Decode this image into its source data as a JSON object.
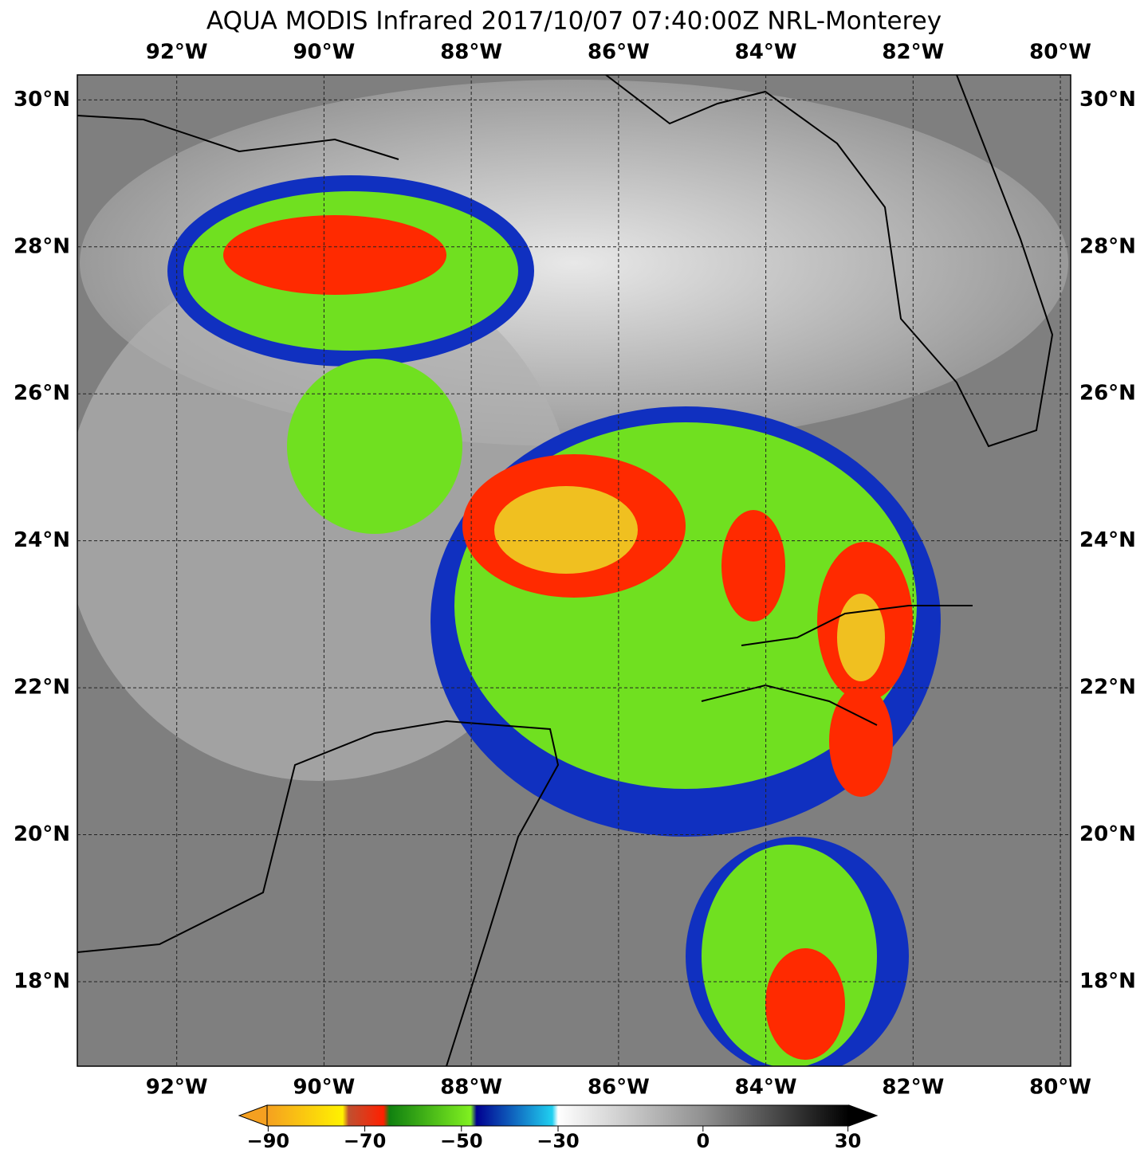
{
  "title": "AQUA MODIS Infrared 2017/10/07 07:40:00Z NRL-Monterey",
  "map": {
    "xlim": [
      -93.35,
      -79.86
    ],
    "ylim": [
      16.85,
      30.34
    ],
    "grid": true,
    "xticks": [
      {
        "value": -92,
        "label": "92°W"
      },
      {
        "value": -90,
        "label": "90°W"
      },
      {
        "value": -88,
        "label": "88°W"
      },
      {
        "value": -86,
        "label": "86°W"
      },
      {
        "value": -84,
        "label": "84°W"
      },
      {
        "value": -82,
        "label": "82°W"
      },
      {
        "value": -80,
        "label": "80°W"
      }
    ],
    "yticks": [
      {
        "value": 18,
        "label": "18°N"
      },
      {
        "value": 20,
        "label": "20°N"
      },
      {
        "value": 22,
        "label": "22°N"
      },
      {
        "value": 24,
        "label": "24°N"
      },
      {
        "value": 26,
        "label": "26°N"
      },
      {
        "value": 28,
        "label": "28°N"
      },
      {
        "value": 30,
        "label": "30°N"
      }
    ]
  },
  "colorbar": {
    "lim": [
      -96,
      36
    ],
    "ticks": [
      {
        "value": -90,
        "label": "−90"
      },
      {
        "value": -70,
        "label": "−70"
      },
      {
        "value": -50,
        "label": "−50"
      },
      {
        "value": -30,
        "label": "−30"
      },
      0,
      30
    ]
  }
}
